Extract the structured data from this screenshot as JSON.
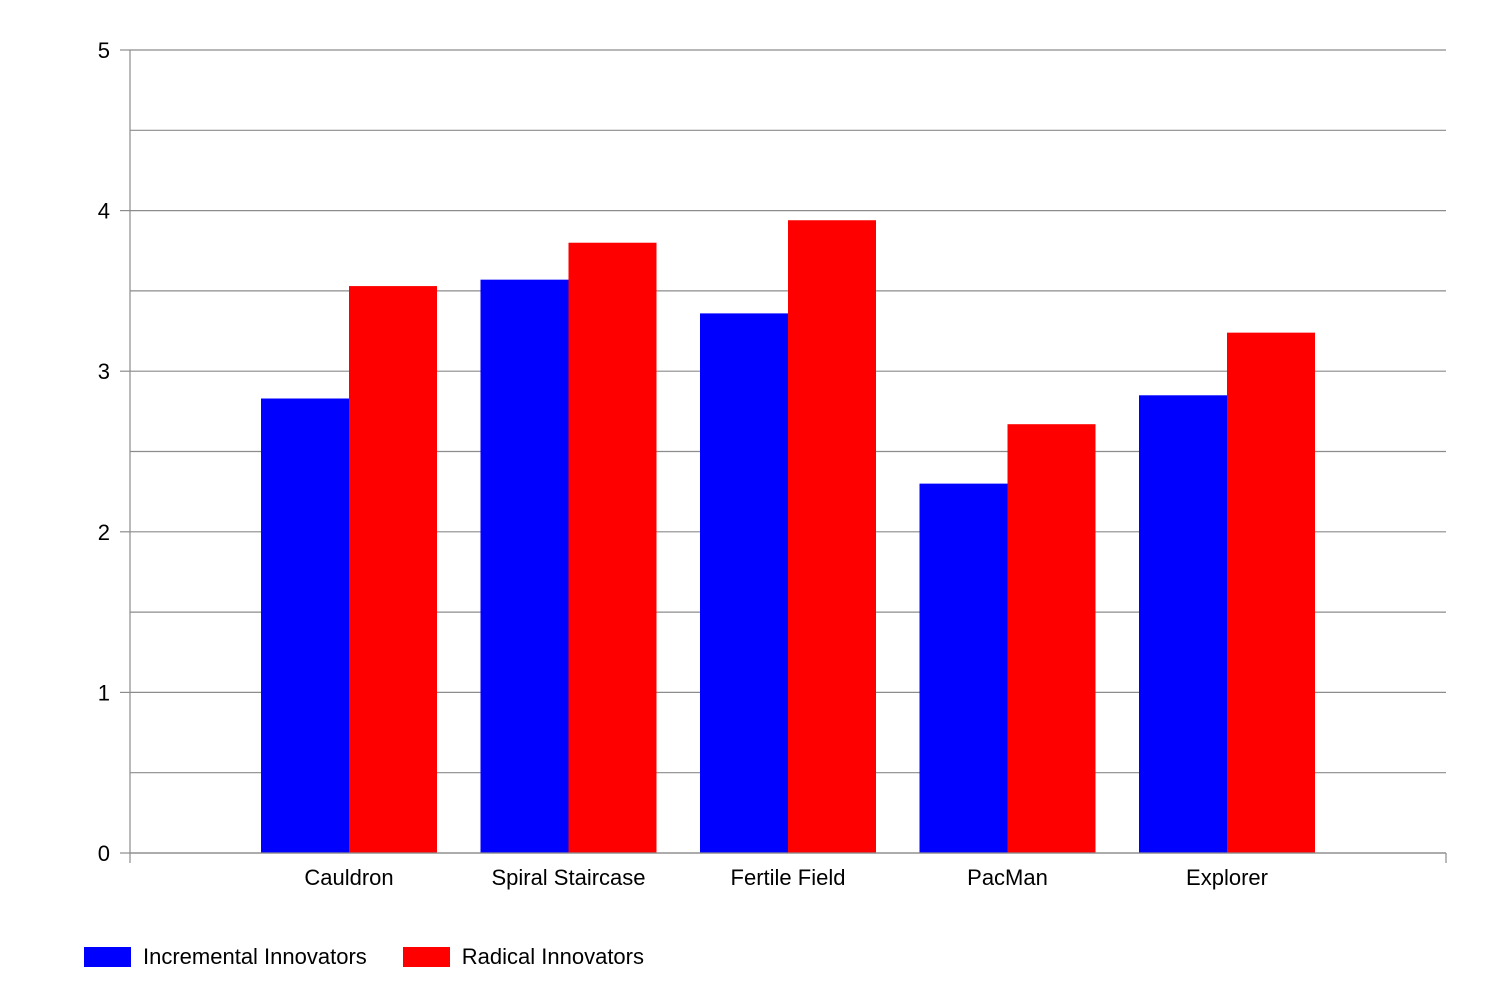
{
  "chart_data": {
    "type": "bar",
    "categories": [
      "Cauldron",
      "Spiral Staircase",
      "Fertile Field",
      "PacMan",
      "Explorer"
    ],
    "series": [
      {
        "name": "Incremental Innovators",
        "color": "#0000ff",
        "values": [
          2.83,
          3.57,
          3.36,
          2.3,
          2.85
        ]
      },
      {
        "name": "Radical Innovators",
        "color": "#ff0000",
        "values": [
          3.53,
          3.8,
          3.94,
          2.67,
          3.24
        ]
      }
    ],
    "ylim": [
      0,
      5
    ],
    "yticks": [
      "0",
      "1",
      "2",
      "3",
      "4",
      "5"
    ],
    "grid": true,
    "legend_position": "bottom-left",
    "title": "",
    "xlabel": "",
    "ylabel": ""
  }
}
